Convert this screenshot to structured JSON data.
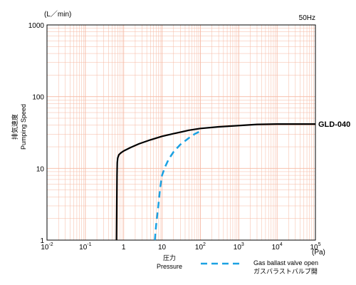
{
  "chart_data": {
    "type": "line",
    "title": "",
    "frequency_label": "50Hz",
    "y_unit": "(L／min)",
    "x_unit": "(Pa)",
    "ylabel_jp": "排気速度",
    "ylabel_en": "Pumping Speed",
    "xlabel_jp": "圧力",
    "xlabel_en": "Pressure",
    "x_scale": "log",
    "y_scale": "log",
    "xlim": [
      0.01,
      100000
    ],
    "ylim": [
      1,
      1000
    ],
    "grid": true,
    "grid_color": "#f6b8a2",
    "x_ticks": [
      {
        "value": 0.01,
        "base": "10",
        "exp": "-2"
      },
      {
        "value": 0.1,
        "base": "10",
        "exp": "-1"
      },
      {
        "value": 1,
        "base": "1",
        "exp": ""
      },
      {
        "value": 10,
        "base": "10",
        "exp": ""
      },
      {
        "value": 100,
        "base": "10",
        "exp": "2"
      },
      {
        "value": 1000,
        "base": "10",
        "exp": "3"
      },
      {
        "value": 10000,
        "base": "10",
        "exp": "4"
      },
      {
        "value": 100000,
        "base": "10",
        "exp": "5"
      }
    ],
    "y_ticks": [
      {
        "value": 1,
        "label": "1"
      },
      {
        "value": 10,
        "label": "10"
      },
      {
        "value": 100,
        "label": "100"
      },
      {
        "value": 1000,
        "label": "1000"
      }
    ],
    "series": [
      {
        "name": "GLD-040",
        "style": "solid",
        "color": "#000000",
        "x": [
          0.65,
          0.66,
          0.67,
          0.68,
          0.7,
          0.75,
          0.85,
          1.0,
          1.5,
          2.5,
          5,
          10,
          20,
          50,
          100,
          300,
          1000,
          3000,
          10000,
          100000
        ],
        "y": [
          1.0,
          3,
          8,
          12,
          14,
          15.5,
          16.5,
          17.5,
          19.5,
          22,
          25,
          28,
          30.5,
          34,
          36,
          38,
          39.5,
          41,
          41.5,
          41.5
        ]
      },
      {
        "name": "Gas ballast valve open",
        "style": "dashed",
        "color": "#1ba1e2",
        "x": [
          6.5,
          7,
          8,
          9,
          10,
          12,
          15,
          20,
          30,
          50,
          70,
          100
        ],
        "y": [
          1.0,
          1.6,
          3,
          5.5,
          8,
          10.5,
          13.5,
          17,
          21.5,
          26.5,
          30,
          33
        ]
      }
    ],
    "legend": {
      "position": "bottom-right",
      "entries": [
        {
          "line1": "Gas ballast valve open",
          "line2": "ガスバラストバルブ開",
          "style": "dashed",
          "color": "#1ba1e2"
        }
      ]
    }
  }
}
